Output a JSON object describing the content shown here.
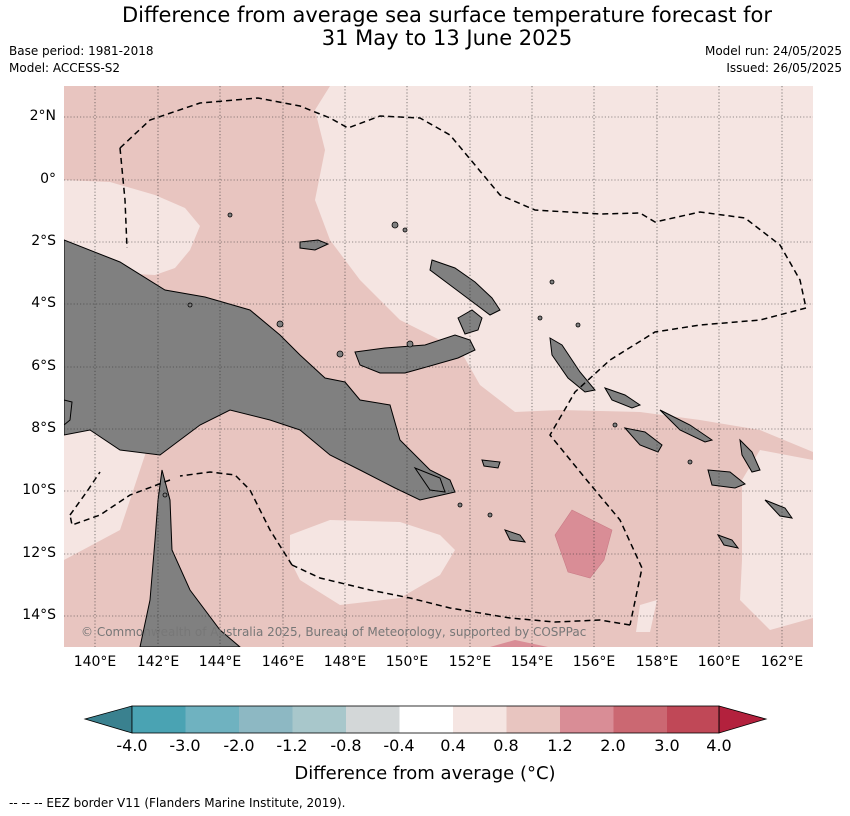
{
  "title_line1": "Difference from average sea surface temperature forecast for",
  "title_line2": "31 May to 13 June 2025",
  "base_period": "Base period: 1981-2018",
  "model": "Model: ACCESS-S2",
  "model_run": "Model run: 24/05/2025",
  "issued": "Issued: 26/05/2025",
  "lat_labels": [
    "2°N",
    "0°",
    "2°S",
    "4°S",
    "6°S",
    "8°S",
    "10°S",
    "12°S",
    "14°S"
  ],
  "lon_labels": [
    "140°E",
    "142°E",
    "144°E",
    "146°E",
    "148°E",
    "150°E",
    "152°E",
    "154°E",
    "156°E",
    "158°E",
    "160°E",
    "162°E"
  ],
  "copyright": "© Commonwealth of Australia 2025, Bureau of Meteorology, supported by COSPPac",
  "colorbar": {
    "ticks": [
      "-4.0",
      "-3.0",
      "-2.0",
      "-1.2",
      "-0.8",
      "-0.4",
      "0.4",
      "0.8",
      "1.2",
      "2.0",
      "3.0",
      "4.0"
    ],
    "colors": [
      "#3a818f",
      "#4aa3b3",
      "#6fb2c0",
      "#8db8c3",
      "#a8c7cb",
      "#d3d7d8",
      "#ffffff",
      "#f5e5e2",
      "#e8c5c0",
      "#d98d96",
      "#cb6872",
      "#c04857",
      "#b3213d"
    ],
    "label": "Difference from average (°C)"
  },
  "eez_note": "--  --  -- EEZ border V11 (Flanders Marine Institute, 2019)."
}
